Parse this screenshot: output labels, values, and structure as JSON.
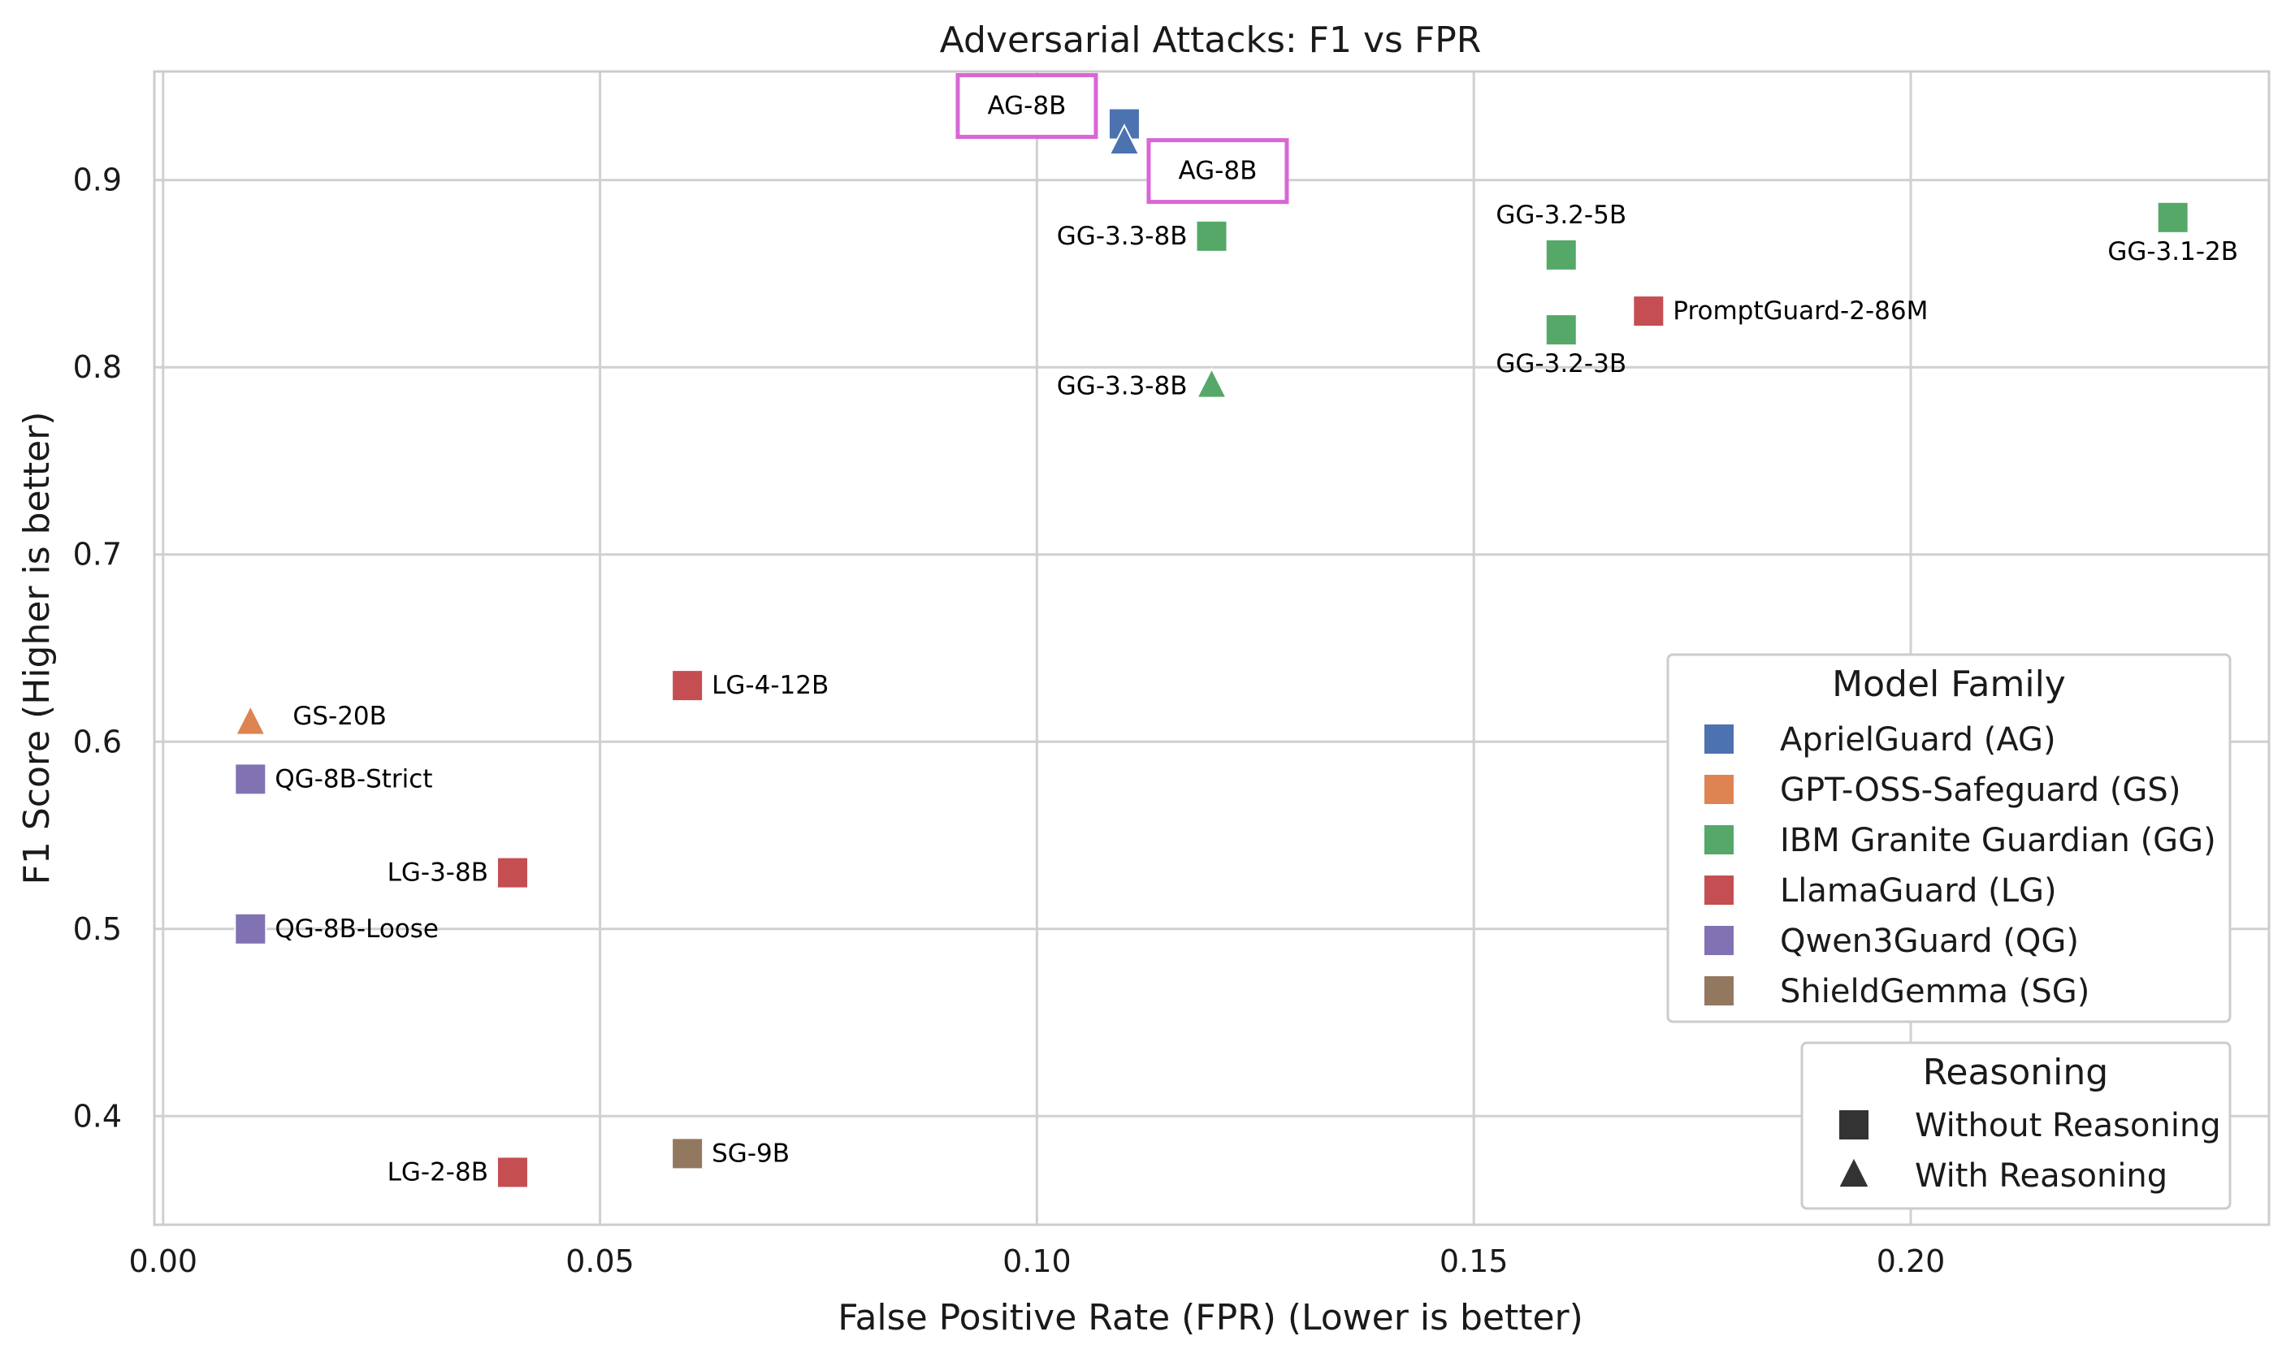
{
  "chart_data": {
    "type": "scatter",
    "title": "Adversarial Attacks: F1 vs FPR",
    "xlabel": "False Positive Rate (FPR) (Lower is better)",
    "ylabel": "F1 Score (Higher is better)",
    "xlim": [
      -0.001,
      0.241
    ],
    "ylim": [
      0.342,
      0.958
    ],
    "xticks": [
      0.0,
      0.05,
      0.1,
      0.15,
      0.2
    ],
    "xtick_labels": [
      "0.00",
      "0.05",
      "0.10",
      "0.15",
      "0.20"
    ],
    "yticks": [
      0.4,
      0.5,
      0.6,
      0.7,
      0.8,
      0.9
    ],
    "ytick_labels": [
      "0.4",
      "0.5",
      "0.6",
      "0.7",
      "0.8",
      "0.9"
    ],
    "grid": true,
    "legend_families": {
      "title": "Model Family",
      "placement": "center-right",
      "entries": [
        {
          "label": "AprielGuard (AG)",
          "color": "#4c72b0"
        },
        {
          "label": "GPT-OSS-Safeguard (GS)",
          "color": "#dd8452"
        },
        {
          "label": "IBM Granite Guardian (GG)",
          "color": "#55a868"
        },
        {
          "label": "LlamaGuard (LG)",
          "color": "#c44e52"
        },
        {
          "label": "Qwen3Guard (QG)",
          "color": "#8172b3"
        },
        {
          "label": "ShieldGemma (SG)",
          "color": "#937860"
        }
      ]
    },
    "legend_reasoning": {
      "title": "Reasoning",
      "placement": "bottom-right",
      "entries": [
        {
          "label": "Without Reasoning",
          "marker": "square"
        },
        {
          "label": "With Reasoning",
          "marker": "triangle"
        }
      ]
    },
    "points": [
      {
        "label": "AG-8B",
        "x": 0.11,
        "y": 0.93,
        "family": "AG",
        "marker": "square",
        "color": "#4c72b0",
        "highlight": true,
        "label_pos": "upper-left"
      },
      {
        "label": "AG-8B",
        "x": 0.11,
        "y": 0.92,
        "family": "AG",
        "marker": "triangle",
        "color": "#4c72b0",
        "highlight": true,
        "label_pos": "lower-right"
      },
      {
        "label": "GG-3.3-8B",
        "x": 0.12,
        "y": 0.87,
        "family": "GG",
        "marker": "square",
        "color": "#55a868",
        "label_pos": "left"
      },
      {
        "label": "GG-3.3-8B",
        "x": 0.12,
        "y": 0.79,
        "family": "GG",
        "marker": "triangle",
        "color": "#55a868",
        "label_pos": "left"
      },
      {
        "label": "GG-3.2-5B",
        "x": 0.16,
        "y": 0.86,
        "family": "GG",
        "marker": "square",
        "color": "#55a868",
        "label_pos": "above"
      },
      {
        "label": "GG-3.2-3B",
        "x": 0.16,
        "y": 0.82,
        "family": "GG",
        "marker": "square",
        "color": "#55a868",
        "label_pos": "below"
      },
      {
        "label": "GG-3.1-2B",
        "x": 0.23,
        "y": 0.88,
        "family": "GG",
        "marker": "square",
        "color": "#55a868",
        "label_pos": "below"
      },
      {
        "label": "PromptGuard-2-86M",
        "x": 0.17,
        "y": 0.83,
        "family": "LG",
        "marker": "square",
        "color": "#c44e52",
        "label_pos": "right"
      },
      {
        "label": "LG-4-12B",
        "x": 0.06,
        "y": 0.63,
        "family": "LG",
        "marker": "square",
        "color": "#c44e52",
        "label_pos": "right"
      },
      {
        "label": "LG-3-8B",
        "x": 0.04,
        "y": 0.53,
        "family": "LG",
        "marker": "square",
        "color": "#c44e52",
        "label_pos": "left"
      },
      {
        "label": "LG-2-8B",
        "x": 0.04,
        "y": 0.37,
        "family": "LG",
        "marker": "square",
        "color": "#c44e52",
        "label_pos": "left"
      },
      {
        "label": "GS-20B",
        "x": 0.01,
        "y": 0.61,
        "family": "GS",
        "marker": "triangle",
        "color": "#dd8452",
        "label_pos": "right-far"
      },
      {
        "label": "QG-8B-Strict",
        "x": 0.01,
        "y": 0.58,
        "family": "QG",
        "marker": "square",
        "color": "#8172b3",
        "label_pos": "right"
      },
      {
        "label": "QG-8B-Loose",
        "x": 0.01,
        "y": 0.5,
        "family": "QG",
        "marker": "square",
        "color": "#8172b3",
        "label_pos": "right"
      },
      {
        "label": "SG-9B",
        "x": 0.06,
        "y": 0.38,
        "family": "SG",
        "marker": "square",
        "color": "#937860",
        "label_pos": "right"
      }
    ],
    "highlight_color": "#d966d6",
    "legend_marker_color": "#333333"
  }
}
